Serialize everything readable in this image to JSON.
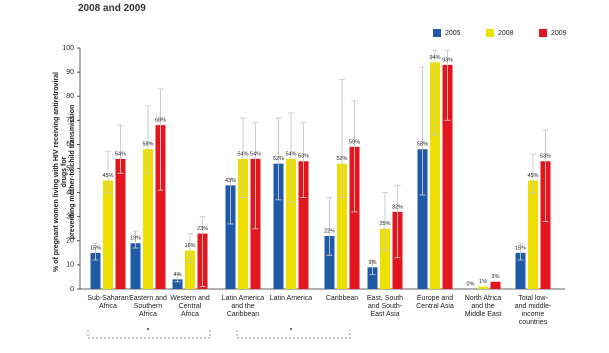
{
  "chart_data": {
    "type": "bar",
    "title": "2008 and 2009",
    "y_label": "% of pregnant women living with HIV receiving antiretroviral drugs for\npreventing mother-to-child transmission",
    "categories": [
      "Sub-Saharan\nAfrica",
      "Eastern and\nSouthern\nAfrica",
      "Western and\nCentral\nAfrica",
      "Latin America\nand the\nCaribbean",
      "Latin America",
      "Caribbean",
      "East, South\nand South-\nEast Asia",
      "Europe and\nCentral Asia",
      "North Africa\nand the\nMiddle East",
      "Total low-\nand middle-\nincome\ncountries"
    ],
    "series": [
      {
        "name": "2005",
        "color": "#1f5aa6",
        "values": [
          15,
          19,
          4,
          43,
          52,
          22,
          9,
          58,
          0,
          15
        ],
        "value_labels": [
          "15%",
          "19%",
          "4%",
          "43%",
          "52%",
          "22%",
          "9%",
          "58%",
          "0%",
          "15%"
        ],
        "lower": [
          12,
          17,
          3,
          27,
          37,
          14,
          6,
          39,
          null,
          12
        ],
        "upper": [
          19,
          24,
          6,
          46,
          71,
          38,
          12,
          92,
          null,
          19
        ]
      },
      {
        "name": "2008",
        "color": "#ede000",
        "values": [
          45,
          58,
          16,
          54,
          54,
          52,
          25,
          94,
          1,
          45
        ],
        "value_labels": [
          "45%",
          "58%",
          "16%",
          "54%",
          "54%",
          "52%",
          "25%",
          "94%",
          "1%",
          "45%"
        ],
        "lower": [
          40,
          48,
          11,
          38,
          36,
          38,
          16,
          64,
          null,
          40
        ],
        "upper": [
          57,
          76,
          23,
          71,
          73,
          87,
          40,
          99,
          null,
          56
        ]
      },
      {
        "name": "2009",
        "color": "#e3161f",
        "values": [
          54,
          68,
          23,
          54,
          53,
          59,
          32,
          93,
          3,
          53
        ],
        "value_labels": [
          "54%",
          "68%",
          "23%",
          "54%",
          "53%",
          "59%",
          "32%",
          "93%",
          "3%",
          "53%"
        ],
        "lower": [
          48,
          41,
          1,
          25,
          38,
          32,
          13,
          70,
          null,
          28
        ],
        "upper": [
          68,
          83,
          30,
          69,
          69,
          78,
          43,
          99,
          null,
          66
        ]
      }
    ],
    "ylim": [
      0,
      100
    ],
    "yticks": [
      0,
      10,
      20,
      30,
      40,
      50,
      60,
      70,
      80,
      90,
      100
    ],
    "grid": false,
    "legend": "top-right"
  }
}
